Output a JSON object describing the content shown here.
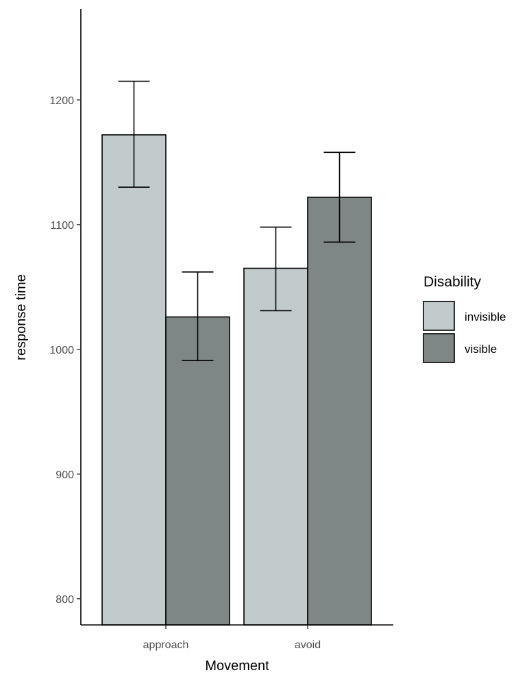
{
  "chart_data": {
    "type": "bar",
    "xlabel": "Movement",
    "ylabel": "response time",
    "categories": [
      "approach",
      "avoid"
    ],
    "ylim": [
      779,
      1273
    ],
    "yticks": [
      800,
      900,
      1000,
      1100,
      1200
    ],
    "grid": false,
    "legend": {
      "title": "Disability",
      "placement": "right"
    },
    "series": [
      {
        "name": "invisible",
        "color": "#c1cbcb",
        "values": [
          1172,
          1065
        ],
        "error_low": [
          1130,
          1031
        ],
        "error_high": [
          1215,
          1098
        ]
      },
      {
        "name": "visible",
        "color": "#7f8786",
        "values": [
          1026,
          1122
        ],
        "error_low": [
          991,
          1086
        ],
        "error_high": [
          1062,
          1158
        ]
      }
    ]
  }
}
